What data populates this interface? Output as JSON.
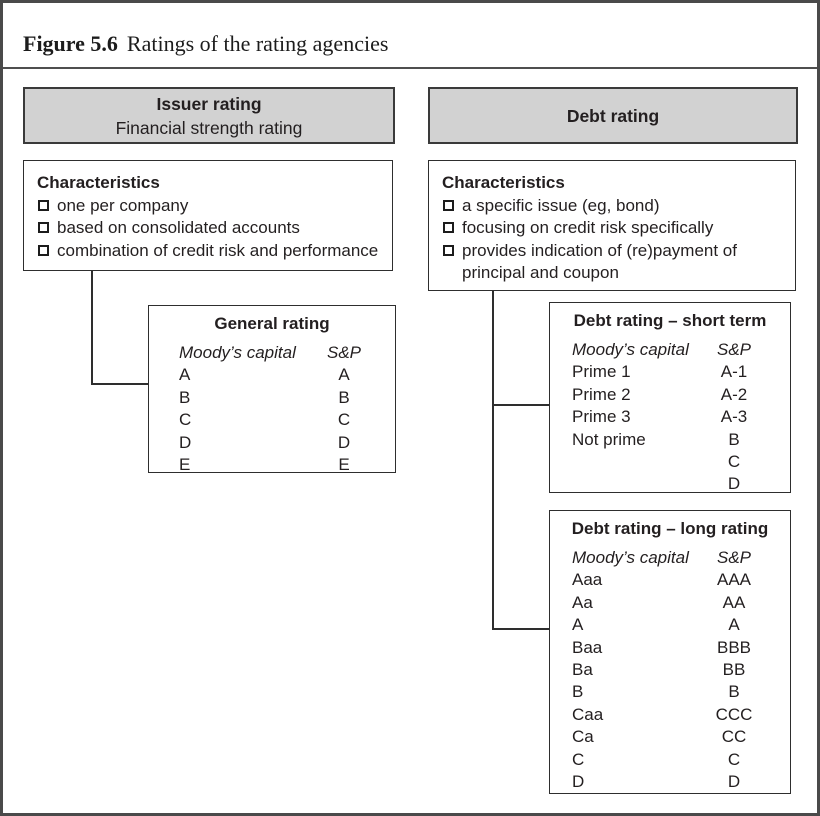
{
  "figure": {
    "label": "Figure 5.6",
    "title": "Ratings of the rating agencies"
  },
  "colors": {
    "header_fill": "#d2d2d2",
    "box_border": "#2e2e2e",
    "frame_border": "#4a4a4a",
    "text": "#231f20"
  },
  "issuer": {
    "header": {
      "line1": "Issuer rating",
      "line2": "Financial strength rating"
    },
    "characteristics": {
      "heading": "Characteristics",
      "items": [
        "one per company",
        "based on consolidated accounts",
        "combination of credit risk and performance"
      ]
    },
    "general_rating": {
      "title": "General rating",
      "col1_header": "Moody’s capital",
      "col2_header": "S&P",
      "rows": [
        [
          "A",
          "A"
        ],
        [
          "B",
          "B"
        ],
        [
          "C",
          "C"
        ],
        [
          "D",
          "D"
        ],
        [
          "E",
          "E"
        ]
      ]
    }
  },
  "debt": {
    "header": {
      "line1": "Debt rating"
    },
    "characteristics": {
      "heading": "Characteristics",
      "items": [
        "a specific issue (eg, bond)",
        "focusing on credit risk specifically",
        "provides indication of (re)payment of principal and coupon"
      ]
    },
    "short_term": {
      "title": "Debt rating – short term",
      "col1_header": "Moody’s capital",
      "col2_header": "S&P",
      "rows": [
        [
          "Prime 1",
          "A-1"
        ],
        [
          "Prime 2",
          "A-2"
        ],
        [
          "Prime 3",
          "A-3"
        ],
        [
          "Not prime",
          "B"
        ],
        [
          "",
          "C"
        ],
        [
          "",
          "D"
        ]
      ]
    },
    "long_rating": {
      "title": "Debt rating – long rating",
      "col1_header": "Moody’s capital",
      "col2_header": "S&P",
      "rows": [
        [
          "Aaa",
          "AAA"
        ],
        [
          "Aa",
          "AA"
        ],
        [
          "A",
          "A"
        ],
        [
          "Baa",
          "BBB"
        ],
        [
          "Ba",
          "BB"
        ],
        [
          "B",
          "B"
        ],
        [
          "Caa",
          "CCC"
        ],
        [
          "Ca",
          "CC"
        ],
        [
          "C",
          "C"
        ],
        [
          "D",
          "D"
        ]
      ]
    }
  }
}
